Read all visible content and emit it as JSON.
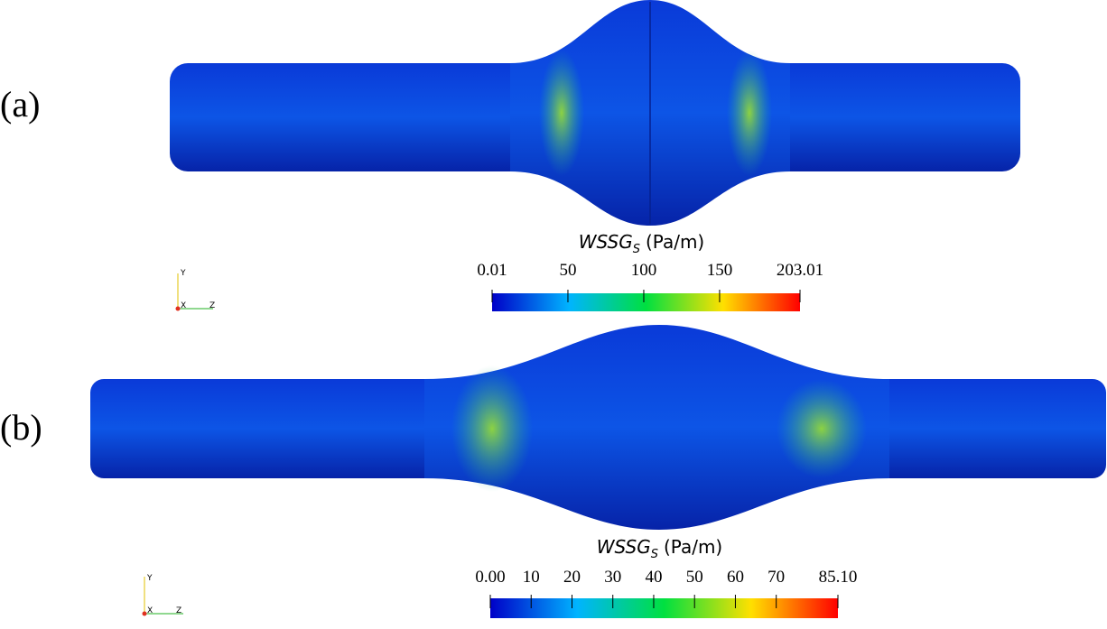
{
  "panels": [
    {
      "label": "(a)",
      "colorbar": {
        "title": "WSSG",
        "title_sub": "S",
        "unit": "(Pa/m)",
        "ticks": [
          {
            "value": 0.01,
            "label": "0.01"
          },
          50,
          100,
          150,
          {
            "value": 203.01,
            "label": "203.01"
          }
        ]
      },
      "axes": {
        "y": "Y",
        "x": "X",
        "z": "Z"
      }
    },
    {
      "label": "(b)",
      "colorbar": {
        "title": "WSSG",
        "title_sub": "S",
        "unit": "(Pa/m)",
        "ticks": [
          {
            "value": 0,
            "label": "0.00"
          },
          10,
          20,
          30,
          40,
          50,
          60,
          70,
          {
            "value": 85.1,
            "label": "85.10"
          }
        ]
      },
      "axes": {
        "y": "Y",
        "x": "X",
        "z": "Z"
      }
    }
  ]
}
